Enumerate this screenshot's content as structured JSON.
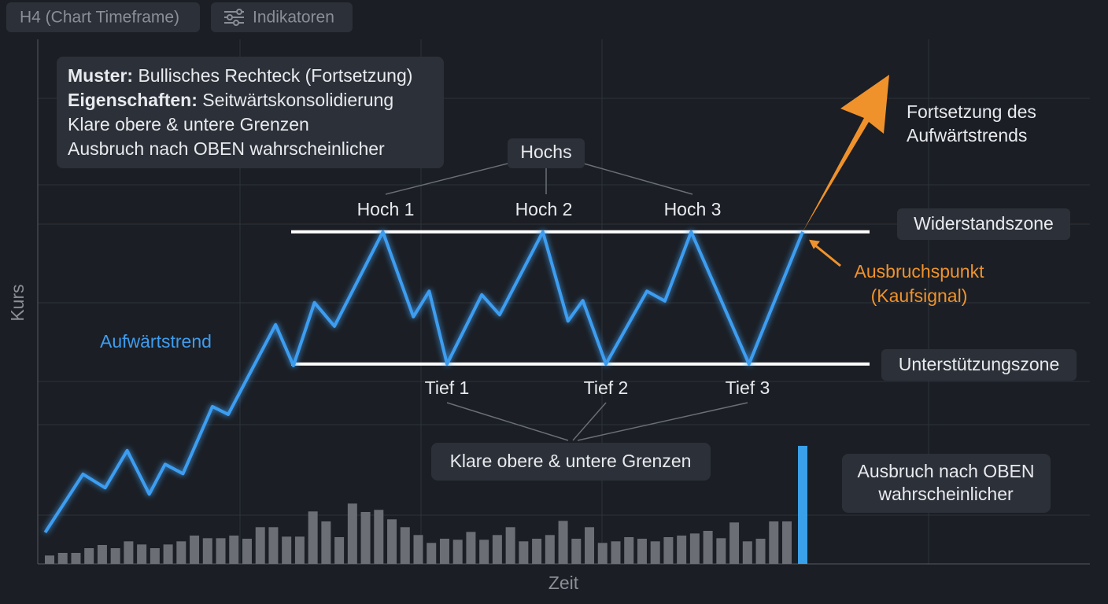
{
  "toolbar": {
    "timeframe": "H4 (Chart Timeframe)",
    "indicators": "Indikatoren"
  },
  "info_box": [
    {
      "label": "Muster:",
      "text": "Bullisches Rechteck (Fortsetzung)"
    },
    {
      "label": "Eigenschaften:",
      "text": "Seitwärtskonsolidierung"
    },
    {
      "text": "Klare obere & untere Grenzen"
    },
    {
      "text": "Ausbruch nach OBEN wahrscheinlicher"
    }
  ],
  "chart_data": {
    "type": "line",
    "y_label": "Kurs",
    "x_label": "Zeit",
    "xlim": [
      0,
      100
    ],
    "ylim": [
      0,
      100
    ],
    "series": [
      {
        "name": "Aufwärtstrend",
        "color": "#3d9df0",
        "x": [
          0.7,
          4.3,
          6.4,
          8.5,
          10.6,
          12.1,
          13.8,
          16.6,
          18.1,
          22.6,
          24.3,
          26.3,
          28.2,
          32.8,
          35.7,
          37.2,
          38.9,
          42.2,
          43.9,
          48.0,
          50.4,
          51.8,
          54.0,
          57.9,
          59.6,
          62.1,
          67.6,
          72.7
        ],
        "values": [
          6.0,
          17.1,
          14.5,
          21.6,
          13.3,
          19.0,
          17.2,
          30.0,
          28.5,
          45.6,
          37.8,
          49.8,
          45.3,
          63.3,
          47.1,
          52.0,
          38.1,
          51.3,
          47.5,
          63.3,
          46.3,
          50.2,
          38.1,
          52.0,
          50.1,
          63.3,
          38.1,
          63.3
        ]
      }
    ],
    "volume": {
      "color": "#6b6e75",
      "values": [
        1.6,
        2.1,
        2.1,
        3.0,
        3.6,
        3.0,
        4.3,
        3.7,
        3.0,
        3.7,
        4.3,
        5.4,
        4.9,
        4.9,
        5.4,
        4.8,
        7.0,
        7.0,
        5.2,
        5.2,
        10.0,
        8.1,
        5.1,
        11.5,
        9.9,
        10.3,
        8.5,
        7.0,
        5.5,
        4.0,
        4.8,
        4.6,
        6.1,
        4.6,
        5.5,
        7.0,
        4.3,
        4.8,
        5.5,
        8.2,
        4.8,
        7.0,
        4.0,
        4.3,
        5.1,
        4.8,
        4.3,
        5.1,
        5.4,
        5.8,
        6.3,
        4.9,
        7.9,
        4.3,
        4.8,
        8.1,
        8.1
      ]
    },
    "breakout_volume": {
      "color": "#3aa0e8",
      "value": 22.5
    },
    "resistance": {
      "name": "Widerstandszone",
      "value": 63.3
    },
    "support": {
      "name": "Unterstützungszone",
      "value": 38.1
    },
    "highs": {
      "title": "Hochs",
      "labels": [
        "Hoch 1",
        "Hoch 2",
        "Hoch 3"
      ]
    },
    "lows": {
      "labels": [
        "Tief 1",
        "Tief 2",
        "Tief 3"
      ]
    },
    "boundaries_note": "Klare obere & untere Grenzen",
    "breakout": {
      "label": [
        "Ausbruchspunkt",
        "(Kaufsignal)"
      ],
      "color": "#f0922b"
    },
    "continuation": [
      "Fortsetzung des",
      "Aufwärtstrends"
    ],
    "breakout_note": [
      "Ausbruch nach OBEN",
      "wahrscheinlicher"
    ]
  }
}
